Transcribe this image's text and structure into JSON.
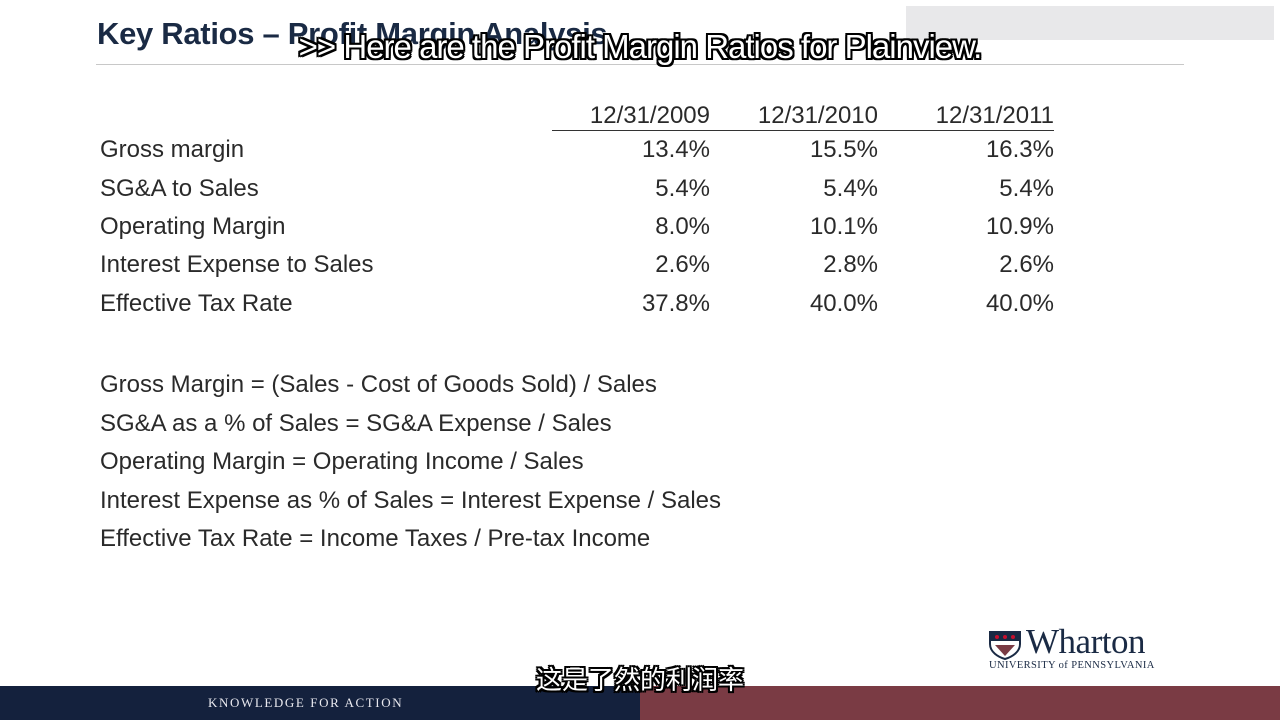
{
  "slide": {
    "title": "Key Ratios – Profit Margin Analysis"
  },
  "subtitles": {
    "english": ">> Here are the Profit Margin Ratios for Plainview.",
    "chinese": "这是了然的利润率"
  },
  "table": {
    "columns": [
      "12/31/2009",
      "12/31/2010",
      "12/31/2011"
    ],
    "rows": [
      {
        "label": "Gross margin",
        "values": [
          "13.4%",
          "15.5%",
          "16.3%"
        ]
      },
      {
        "label": "SG&A to Sales",
        "values": [
          "5.4%",
          "5.4%",
          "5.4%"
        ]
      },
      {
        "label": "Operating Margin",
        "values": [
          "8.0%",
          "10.1%",
          "10.9%"
        ]
      },
      {
        "label": "Interest Expense to Sales",
        "values": [
          "2.6%",
          "2.8%",
          "2.6%"
        ]
      },
      {
        "label": "Effective Tax Rate",
        "values": [
          "37.8%",
          "40.0%",
          "40.0%"
        ]
      }
    ]
  },
  "formulas": [
    "Gross Margin = (Sales - Cost of Goods Sold) / Sales",
    "SG&A as a % of Sales = SG&A Expense / Sales",
    "Operating Margin = Operating Income / Sales",
    "Interest Expense as % of Sales = Interest Expense / Sales",
    "Effective Tax Rate = Income Taxes / Pre-tax Income"
  ],
  "logo": {
    "wordmark": "Wharton",
    "institution": "UNIVERSITY of PENNSYLVANIA"
  },
  "footer": {
    "tagline": "KNOWLEDGE FOR ACTION"
  },
  "colors": {
    "navy": "#14213d",
    "maroon": "#7a3b44",
    "title": "#1a2a44"
  }
}
